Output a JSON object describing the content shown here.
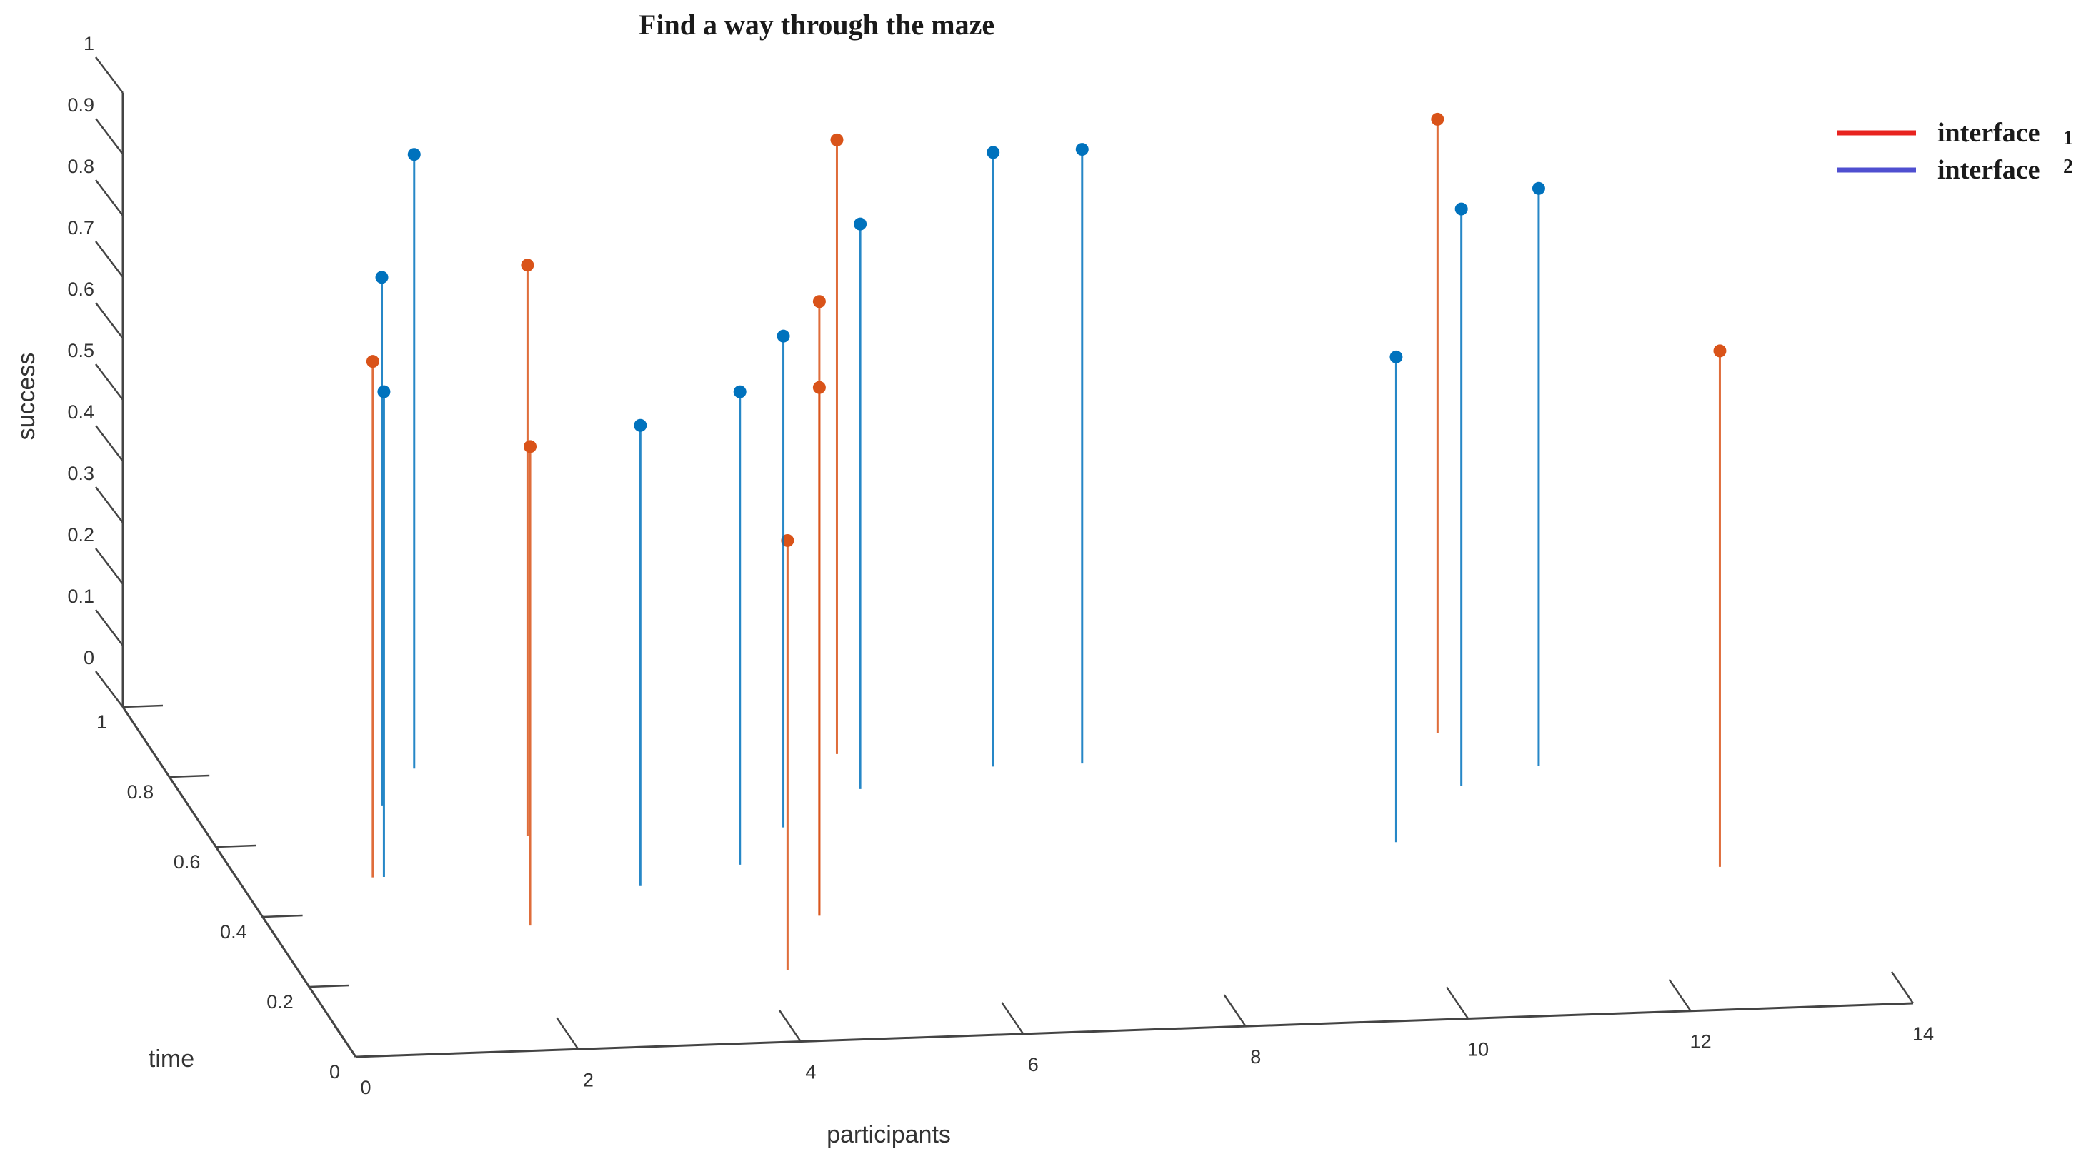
{
  "chart_data": {
    "type": "scatter",
    "subtype": "3d-stem",
    "title": "Find a way through the maze",
    "xlabel": "participants",
    "ylabel": "time",
    "zlabel": "success",
    "xlim": [
      0,
      14
    ],
    "ylim": [
      0,
      1
    ],
    "zlim": [
      0,
      1
    ],
    "x_ticks": [
      "0",
      "2",
      "4",
      "6",
      "8",
      "10",
      "12",
      "14"
    ],
    "y_ticks": [
      "0",
      "0.2",
      "0.4",
      "0.6",
      "0.8",
      "1"
    ],
    "z_ticks": [
      "0",
      "0.1",
      "0.2",
      "0.3",
      "0.4",
      "0.5",
      "0.6",
      "0.7",
      "0.8",
      "0.9",
      "1"
    ],
    "grid": false,
    "legend_position": "top-right",
    "legend": [
      {
        "text": "interface",
        "sub": "1",
        "swatch": "#e8231f"
      },
      {
        "text": "interface",
        "sub": "2",
        "swatch": "#4f4fd0"
      }
    ],
    "series": [
      {
        "color": "#d95319",
        "points": [
          {
            "x": 1.2,
            "y": 0.5,
            "z": 0.84
          },
          {
            "x": 2.3,
            "y": 0.35,
            "z": 0.78
          },
          {
            "x": 2.8,
            "y": 0.6,
            "z": 0.93
          },
          {
            "x": 4.3,
            "y": 0.2,
            "z": 0.7
          },
          {
            "x": 4.9,
            "y": 0.35,
            "z": 1.0
          },
          {
            "x": 4.9,
            "y": 0.35,
            "z": 0.86
          },
          {
            "x": 6.0,
            "y": 0.8,
            "z": 1.0
          },
          {
            "x": 11.4,
            "y": 0.8,
            "z": 1.0
          },
          {
            "x": 13.1,
            "y": 0.4,
            "z": 0.84
          }
        ]
      },
      {
        "color": "#0072bd",
        "points": [
          {
            "x": 1.3,
            "y": 0.5,
            "z": 0.79
          },
          {
            "x": 1.7,
            "y": 0.7,
            "z": 0.86
          },
          {
            "x": 2.2,
            "y": 0.8,
            "z": 1.0
          },
          {
            "x": 3.5,
            "y": 0.45,
            "z": 0.75
          },
          {
            "x": 4.5,
            "y": 0.5,
            "z": 0.77
          },
          {
            "x": 5.1,
            "y": 0.6,
            "z": 0.8
          },
          {
            "x": 6.0,
            "y": 0.7,
            "z": 0.92
          },
          {
            "x": 7.3,
            "y": 0.75,
            "z": 1.0
          },
          {
            "x": 8.1,
            "y": 0.75,
            "z": 1.0
          },
          {
            "x": 10.4,
            "y": 0.5,
            "z": 0.79
          },
          {
            "x": 11.3,
            "y": 0.65,
            "z": 0.94
          },
          {
            "x": 12.1,
            "y": 0.7,
            "z": 0.94
          }
        ]
      }
    ]
  }
}
